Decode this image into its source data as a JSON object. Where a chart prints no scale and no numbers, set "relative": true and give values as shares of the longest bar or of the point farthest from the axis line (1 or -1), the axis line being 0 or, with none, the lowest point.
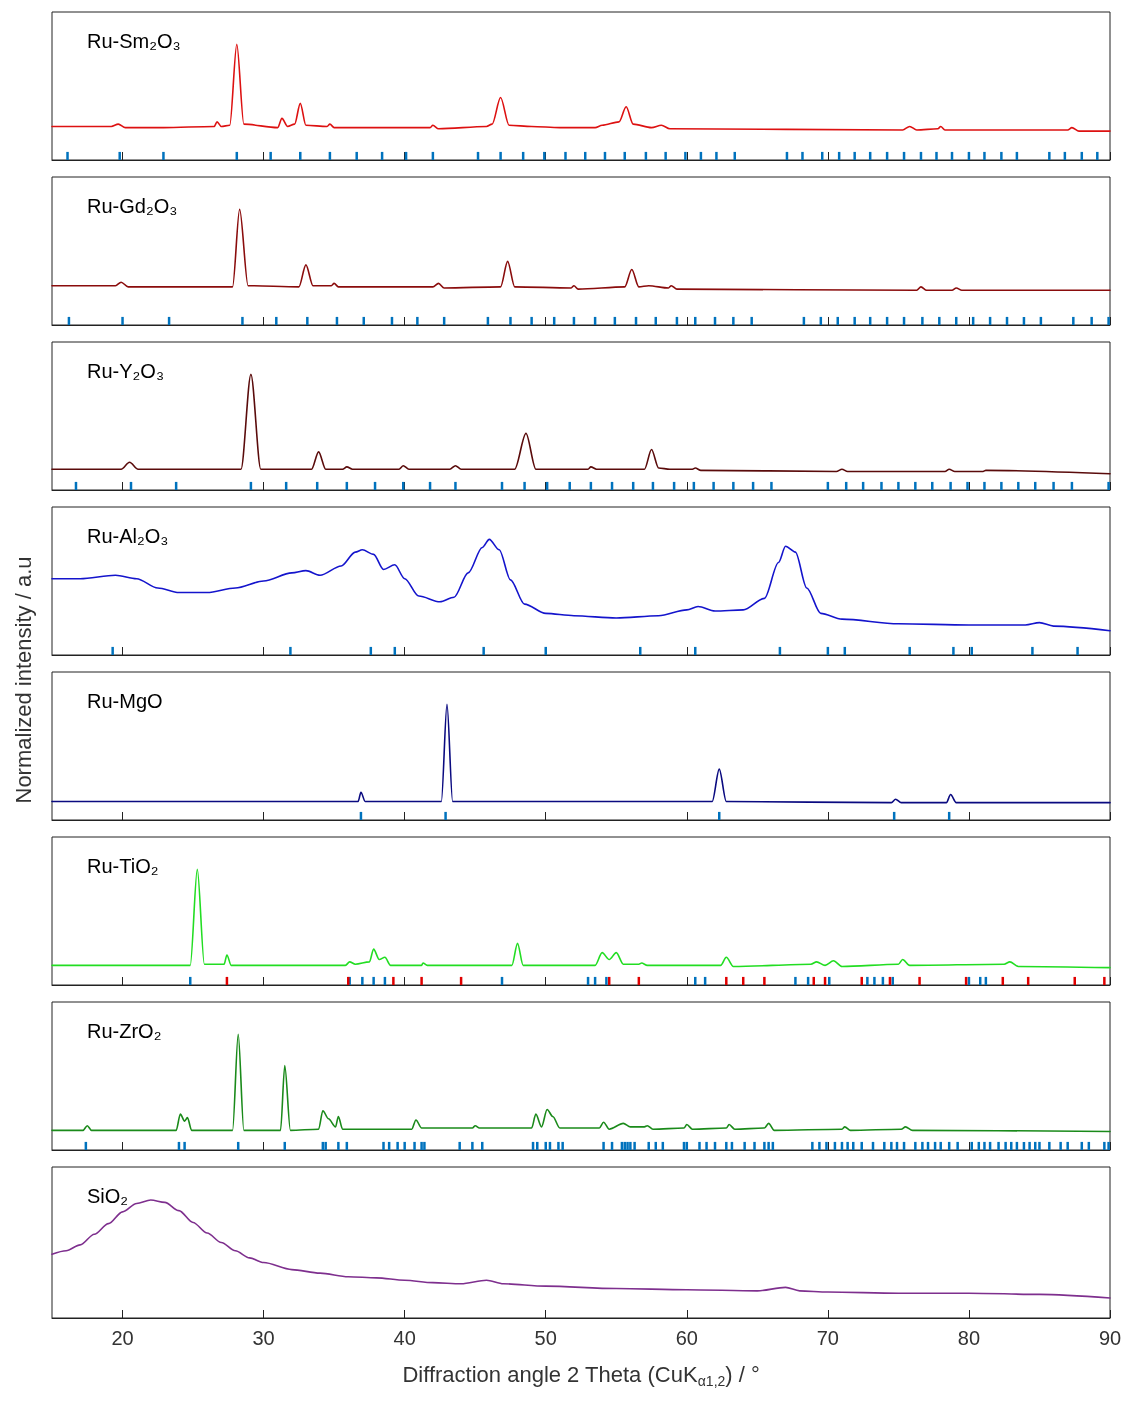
{
  "chart_data": [
    {
      "type": "line",
      "title": "Ru-Sm₂O₃",
      "relative": true,
      "xlim": [
        15,
        90
      ],
      "xticks": [
        20,
        30,
        40,
        50,
        60,
        70,
        80,
        90
      ],
      "tick_labels": false,
      "series": [
        {
          "color": "#dd1111",
          "x": [
            15,
            19.2,
            19.7,
            20.2,
            22.9,
            26.5,
            26.7,
            27,
            27.6,
            28.1,
            28.6,
            31,
            31.3,
            31.7,
            32.2,
            32.6,
            33,
            34.5,
            34.7,
            35,
            38.3,
            41.8,
            42,
            42.4,
            45.8,
            46.2,
            46.8,
            47.4,
            49,
            51,
            53.5,
            54,
            55.2,
            55.7,
            56.2,
            57.5,
            58.2,
            58.8,
            75.3,
            75.8,
            76.3,
            77.8,
            78,
            78.3,
            87,
            87.3,
            87.8,
            90
          ],
          "values": [
            0.29,
            0.29,
            0.31,
            0.28,
            0.28,
            0.29,
            0.33,
            0.29,
            0.3,
            1,
            0.31,
            0.28,
            0.36,
            0.29,
            0.31,
            0.49,
            0.3,
            0.29,
            0.31,
            0.28,
            0.28,
            0.28,
            0.3,
            0.27,
            0.29,
            0.31,
            0.54,
            0.3,
            0.29,
            0.28,
            0.28,
            0.3,
            0.33,
            0.46,
            0.31,
            0.28,
            0.3,
            0.27,
            0.26,
            0.29,
            0.26,
            0.27,
            0.29,
            0.26,
            0.26,
            0.28,
            0.25,
            0.25
          ]
        },
        {
          "type": "bar",
          "color": "#0072bd",
          "x": [
            16.1,
            19.8,
            22.9,
            28.1,
            30.5,
            32.6,
            34.7,
            36.6,
            38.4,
            40.1,
            42.0,
            45.2,
            46.8,
            48.4,
            49.9,
            51.4,
            52.8,
            54.2,
            55.6,
            57.1,
            58.5,
            59.9,
            61.0,
            62.1,
            63.4,
            67.1,
            68.2,
            69.6,
            70.8,
            71.9,
            73.0,
            74.2,
            75.4,
            76.6,
            77.7,
            78.8,
            80.0,
            81.1,
            82.3,
            83.4,
            85.7,
            86.8,
            88.0,
            89.1
          ],
          "values": [
            0.07,
            0.07,
            0.07,
            0.07,
            0.07,
            0.07,
            0.07,
            0.07,
            0.07,
            0.07,
            0.07,
            0.07,
            0.07,
            0.07,
            0.07,
            0.07,
            0.07,
            0.07,
            0.07,
            0.07,
            0.07,
            0.07,
            0.07,
            0.07,
            0.07,
            0.07,
            0.07,
            0.07,
            0.07,
            0.07,
            0.07,
            0.07,
            0.07,
            0.07,
            0.07,
            0.07,
            0.07,
            0.07,
            0.07,
            0.07,
            0.07,
            0.07,
            0.07,
            0.07
          ]
        }
      ]
    },
    {
      "type": "line",
      "title": "Ru-Gd₂O₃",
      "relative": true,
      "xlim": [
        15,
        90
      ],
      "xticks": [
        20,
        30,
        40,
        50,
        60,
        70,
        80,
        90
      ],
      "tick_labels": false,
      "series": [
        {
          "color": "#8a0c0c",
          "x": [
            15,
            19.5,
            19.9,
            20.4,
            27.8,
            28.3,
            28.9,
            32.5,
            33,
            33.5,
            34.8,
            35,
            35.3,
            42,
            42.4,
            42.8,
            46.8,
            47.3,
            47.8,
            51.8,
            52,
            52.3,
            55.6,
            56.1,
            56.6,
            57.3,
            58.7,
            58.9,
            59.3,
            76.3,
            76.6,
            77,
            78.8,
            79.1,
            79.5,
            90
          ],
          "values": [
            0.34,
            0.34,
            0.37,
            0.33,
            0.33,
            1,
            0.34,
            0.33,
            0.52,
            0.34,
            0.34,
            0.36,
            0.33,
            0.33,
            0.36,
            0.32,
            0.33,
            0.55,
            0.33,
            0.32,
            0.34,
            0.31,
            0.33,
            0.48,
            0.33,
            0.34,
            0.32,
            0.34,
            0.31,
            0.3,
            0.33,
            0.3,
            0.3,
            0.32,
            0.3,
            0.3
          ]
        },
        {
          "type": "bar",
          "color": "#0072bd",
          "x": [
            16.2,
            20.0,
            23.3,
            28.5,
            30.9,
            33.1,
            35.2,
            37.1,
            39.1,
            40.9,
            42.8,
            45.9,
            47.5,
            49.0,
            50.6,
            52.0,
            53.5,
            54.9,
            56.4,
            57.8,
            59.3,
            60.6,
            62.0,
            63.3,
            64.6,
            68.3,
            69.5,
            70.7,
            71.9,
            73.0,
            74.2,
            75.4,
            76.7,
            77.9,
            79.1,
            80.3,
            81.5,
            82.7,
            83.9,
            85.1,
            87.4,
            88.7,
            89.9
          ],
          "values": [
            0.07,
            0.07,
            0.07,
            0.07,
            0.07,
            0.07,
            0.07,
            0.07,
            0.07,
            0.07,
            0.07,
            0.07,
            0.07,
            0.07,
            0.07,
            0.07,
            0.07,
            0.07,
            0.07,
            0.07,
            0.07,
            0.07,
            0.07,
            0.07,
            0.07,
            0.07,
            0.07,
            0.07,
            0.07,
            0.07,
            0.07,
            0.07,
            0.07,
            0.07,
            0.07,
            0.07,
            0.07,
            0.07,
            0.07,
            0.07,
            0.07,
            0.07,
            0.07
          ]
        }
      ]
    },
    {
      "type": "line",
      "title": "Ru-Y₂O₃",
      "relative": true,
      "xlim": [
        15,
        90
      ],
      "xticks": [
        20,
        30,
        40,
        50,
        60,
        70,
        80,
        90
      ],
      "tick_labels": false,
      "series": [
        {
          "color": "#5a0b0b",
          "x": [
            15,
            19.9,
            20.5,
            21.1,
            28.4,
            29.1,
            29.8,
            33.4,
            33.9,
            34.4,
            35.6,
            35.9,
            36.3,
            39.6,
            39.9,
            40.3,
            43.2,
            43.6,
            44,
            47.8,
            48.6,
            49.3,
            53,
            53.2,
            53.6,
            57,
            57.5,
            58,
            58.8,
            60.4,
            60.6,
            61,
            70.6,
            71,
            71.4,
            78.3,
            78.6,
            79,
            81,
            81.2,
            90
          ],
          "values": [
            0.18,
            0.18,
            0.24,
            0.18,
            0.18,
            1,
            0.18,
            0.18,
            0.33,
            0.18,
            0.18,
            0.2,
            0.18,
            0.18,
            0.21,
            0.18,
            0.18,
            0.21,
            0.18,
            0.18,
            0.49,
            0.18,
            0.18,
            0.2,
            0.18,
            0.18,
            0.35,
            0.19,
            0.18,
            0.18,
            0.19,
            0.17,
            0.16,
            0.18,
            0.16,
            0.16,
            0.18,
            0.16,
            0.16,
            0.17,
            0.14
          ]
        },
        {
          "type": "bar",
          "color": "#0072bd",
          "x": [
            16.7,
            20.6,
            23.8,
            29.1,
            31.6,
            33.8,
            35.9,
            37.9,
            39.9,
            41.8,
            43.6,
            46.9,
            48.5,
            50.1,
            51.7,
            53.2,
            54.7,
            56.2,
            57.6,
            59.1,
            60.5,
            61.9,
            63.3,
            64.7,
            66.0,
            70.0,
            71.3,
            72.5,
            73.8,
            75.0,
            76.2,
            77.4,
            78.7,
            79.9,
            81.1,
            82.3,
            83.5,
            84.7,
            86.0,
            87.3,
            89.9
          ],
          "values": [
            0.07,
            0.07,
            0.07,
            0.07,
            0.07,
            0.07,
            0.07,
            0.07,
            0.07,
            0.07,
            0.07,
            0.07,
            0.07,
            0.07,
            0.07,
            0.07,
            0.07,
            0.07,
            0.07,
            0.07,
            0.07,
            0.07,
            0.07,
            0.07,
            0.07,
            0.07,
            0.07,
            0.07,
            0.07,
            0.07,
            0.07,
            0.07,
            0.07,
            0.07,
            0.07,
            0.07,
            0.07,
            0.07,
            0.07,
            0.07,
            0.07
          ]
        }
      ]
    },
    {
      "type": "line",
      "title": "Ru-Al₂O₃",
      "relative": true,
      "xlim": [
        15,
        90
      ],
      "xticks": [
        20,
        30,
        40,
        50,
        60,
        70,
        80,
        90
      ],
      "tick_labels": false,
      "series": [
        {
          "color": "#1414cc",
          "x": [
            15,
            17,
            19.5,
            21,
            22.5,
            24,
            26,
            28,
            30,
            32,
            33,
            34,
            35.5,
            36.5,
            37,
            37.8,
            38.5,
            39.3,
            40,
            41,
            42.5,
            43.5,
            44.5,
            45.5,
            46,
            46.7,
            47.5,
            48.5,
            50,
            52,
            55,
            58,
            60,
            60.8,
            62,
            64,
            65.5,
            66.5,
            67,
            67.7,
            68.5,
            69.5,
            71,
            75,
            80,
            84,
            85,
            86,
            90
          ],
          "values": [
            0.66,
            0.66,
            0.69,
            0.66,
            0.58,
            0.54,
            0.54,
            0.58,
            0.64,
            0.71,
            0.73,
            0.69,
            0.77,
            0.89,
            0.91,
            0.87,
            0.74,
            0.78,
            0.66,
            0.51,
            0.46,
            0.5,
            0.71,
            0.93,
            1,
            0.91,
            0.65,
            0.44,
            0.36,
            0.34,
            0.32,
            0.34,
            0.39,
            0.42,
            0.38,
            0.39,
            0.49,
            0.8,
            0.94,
            0.89,
            0.58,
            0.36,
            0.31,
            0.27,
            0.26,
            0.26,
            0.28,
            0.25,
            0.21
          ]
        },
        {
          "type": "bar",
          "color": "#0072bd",
          "x": [
            19.3,
            31.9,
            37.6,
            39.3,
            45.6,
            50.0,
            56.7,
            60.6,
            66.6,
            70.0,
            71.2,
            75.8,
            78.9,
            80.2,
            84.5,
            87.7
          ],
          "values": [
            0.07,
            0.07,
            0.07,
            0.07,
            0.07,
            0.07,
            0.07,
            0.07,
            0.07,
            0.07,
            0.07,
            0.07,
            0.07,
            0.07,
            0.07,
            0.07
          ]
        }
      ]
    },
    {
      "type": "line",
      "title": "Ru-MgO",
      "ylabel": "Normalized intensity / a.u",
      "relative": true,
      "xlim": [
        15,
        90
      ],
      "xticks": [
        20,
        30,
        40,
        50,
        60,
        70,
        80,
        90
      ],
      "tick_labels": false,
      "series": [
        {
          "color": "#0a0a80",
          "x": [
            15,
            36.7,
            36.9,
            37.2,
            42.6,
            43,
            43.4,
            61.8,
            62.3,
            62.8,
            74.5,
            74.8,
            75.2,
            78.4,
            78.7,
            79.1,
            90
          ],
          "values": [
            0.16,
            0.16,
            0.24,
            0.16,
            0.16,
            1,
            0.16,
            0.16,
            0.44,
            0.16,
            0.15,
            0.18,
            0.15,
            0.15,
            0.22,
            0.15,
            0.15
          ]
        },
        {
          "type": "bar",
          "color": "#0072bd",
          "x": [
            36.9,
            42.9,
            62.3,
            74.7,
            78.6
          ],
          "values": [
            0.07,
            0.07,
            0.07,
            0.07,
            0.07
          ]
        }
      ]
    },
    {
      "type": "line",
      "title": "Ru-TiO₂",
      "relative": true,
      "xlim": [
        15,
        90
      ],
      "xticks": [
        20,
        30,
        40,
        50,
        60,
        70,
        80,
        90
      ],
      "tick_labels": false,
      "series": [
        {
          "color": "#22dd22",
          "x": [
            15,
            24.8,
            25.3,
            25.8,
            27.2,
            27.4,
            27.7,
            35.8,
            36.1,
            36.5,
            37.5,
            37.8,
            38.2,
            38.6,
            39,
            41.2,
            41.3,
            41.6,
            47.6,
            48,
            48.4,
            53.5,
            54,
            54.5,
            55,
            55.5,
            56.6,
            56.8,
            57.2,
            62.4,
            62.8,
            63.3,
            68.8,
            69.2,
            69.8,
            70.4,
            71,
            75,
            75.3,
            75.8,
            82.5,
            82.9,
            83.5,
            90
          ],
          "values": [
            0.17,
            0.17,
            1,
            0.18,
            0.18,
            0.26,
            0.17,
            0.17,
            0.2,
            0.18,
            0.2,
            0.31,
            0.22,
            0.24,
            0.17,
            0.17,
            0.19,
            0.17,
            0.17,
            0.36,
            0.17,
            0.17,
            0.28,
            0.22,
            0.28,
            0.18,
            0.18,
            0.19,
            0.17,
            0.17,
            0.24,
            0.16,
            0.18,
            0.2,
            0.17,
            0.21,
            0.16,
            0.18,
            0.22,
            0.17,
            0.18,
            0.2,
            0.16,
            0.15
          ]
        },
        {
          "type": "bar",
          "color": "#0072bd",
          "x": [
            24.8,
            36.1,
            37.0,
            37.8,
            38.6,
            46.9,
            53.0,
            53.5,
            54.3,
            60.6,
            61.3,
            67.7,
            68.6,
            70.1,
            72.8,
            73.3,
            73.9,
            74.6,
            80.0,
            80.8,
            81.2
          ],
          "values": [
            0.07,
            0.07,
            0.07,
            0.07,
            0.07,
            0.07,
            0.07,
            0.07,
            0.07,
            0.07,
            0.07,
            0.07,
            0.07,
            0.07,
            0.07,
            0.07,
            0.07,
            0.07,
            0.07,
            0.07,
            0.07
          ]
        },
        {
          "type": "bar",
          "color": "#e00000",
          "x": [
            27.4,
            36.0,
            39.2,
            41.2,
            44.0,
            54.5,
            56.6,
            62.8,
            64.0,
            65.5,
            69.0,
            69.8,
            72.4,
            74.4,
            76.5,
            79.8,
            82.4,
            84.2,
            87.5,
            89.6
          ],
          "values": [
            0.07,
            0.07,
            0.07,
            0.07,
            0.07,
            0.07,
            0.07,
            0.07,
            0.07,
            0.07,
            0.07,
            0.07,
            0.07,
            0.07,
            0.07,
            0.07,
            0.07,
            0.07,
            0.07,
            0.07
          ]
        }
      ]
    },
    {
      "type": "line",
      "title": "Ru-ZrO₂",
      "relative": true,
      "xlim": [
        15,
        90
      ],
      "xticks": [
        20,
        30,
        40,
        50,
        60,
        70,
        80,
        90
      ],
      "tick_labels": false,
      "series": [
        {
          "color": "#1a8a1a",
          "x": [
            15,
            17.2,
            17.5,
            17.8,
            23.8,
            24.1,
            24.4,
            24.6,
            24.9,
            27.8,
            28.2,
            28.6,
            31.2,
            31.5,
            31.9,
            33.9,
            34.2,
            34.6,
            35.1,
            35.3,
            35.6,
            40.5,
            40.8,
            41.2,
            44.8,
            45,
            45.3,
            49,
            49.3,
            49.7,
            50.1,
            50.5,
            51,
            53.8,
            54.1,
            54.5,
            55.5,
            56,
            57,
            57.2,
            57.6,
            59.8,
            60,
            60.4,
            62.8,
            63,
            63.4,
            65.5,
            65.8,
            66.2,
            71,
            71.2,
            71.6,
            75.2,
            75.5,
            76,
            90
          ],
          "values": [
            0.17,
            0.17,
            0.21,
            0.17,
            0.17,
            0.31,
            0.25,
            0.28,
            0.17,
            0.17,
            1,
            0.17,
            0.17,
            0.73,
            0.17,
            0.18,
            0.34,
            0.27,
            0.2,
            0.29,
            0.18,
            0.18,
            0.26,
            0.19,
            0.19,
            0.21,
            0.19,
            0.19,
            0.31,
            0.2,
            0.35,
            0.29,
            0.19,
            0.19,
            0.24,
            0.18,
            0.23,
            0.2,
            0.2,
            0.21,
            0.18,
            0.19,
            0.22,
            0.18,
            0.19,
            0.22,
            0.18,
            0.19,
            0.23,
            0.17,
            0.18,
            0.2,
            0.17,
            0.18,
            0.2,
            0.17,
            0.16
          ]
        },
        {
          "type": "bar",
          "color": "#0072bd",
          "x": [
            17.4,
            24.0,
            24.4,
            28.2,
            31.5,
            34.2,
            34.4,
            35.3,
            35.9,
            38.5,
            38.9,
            39.5,
            40.0,
            40.7,
            41.2,
            41.4,
            43.9,
            44.8,
            45.5,
            49.1,
            49.4,
            50.0,
            50.3,
            50.9,
            51.2,
            54.1,
            54.7,
            55.4,
            55.6,
            55.8,
            56.0,
            56.3,
            57.3,
            57.8,
            58.3,
            59.8,
            60.0,
            60.9,
            61.4,
            62.0,
            62.8,
            63.2,
            64.1,
            64.8,
            65.5,
            65.8,
            66.1,
            68.9,
            69.4,
            69.9,
            70.5,
            71.0,
            71.4,
            71.8,
            72.4,
            73.2,
            74.0,
            74.5,
            74.9,
            75.4,
            76.2,
            76.7,
            77.1,
            77.6,
            78.0,
            78.6,
            79.2,
            80.2,
            80.7,
            81.1,
            81.5,
            82.1,
            82.6,
            83.0,
            83.4,
            83.9,
            84.3,
            84.7,
            85.0,
            85.7,
            86.5,
            87.0,
            88.0,
            88.5,
            89.6,
            89.9
          ],
          "values": [
            0.07,
            0.07,
            0.07,
            0.07,
            0.07,
            0.07,
            0.07,
            0.07,
            0.07,
            0.07,
            0.07,
            0.07,
            0.07,
            0.07,
            0.07,
            0.07,
            0.07,
            0.07,
            0.07,
            0.07,
            0.07,
            0.07,
            0.07,
            0.07,
            0.07,
            0.07,
            0.07,
            0.07,
            0.07,
            0.07,
            0.07,
            0.07,
            0.07,
            0.07,
            0.07,
            0.07,
            0.07,
            0.07,
            0.07,
            0.07,
            0.07,
            0.07,
            0.07,
            0.07,
            0.07,
            0.07,
            0.07,
            0.07,
            0.07,
            0.07,
            0.07,
            0.07,
            0.07,
            0.07,
            0.07,
            0.07,
            0.07,
            0.07,
            0.07,
            0.07,
            0.07,
            0.07,
            0.07,
            0.07,
            0.07,
            0.07,
            0.07,
            0.07,
            0.07,
            0.07,
            0.07,
            0.07,
            0.07,
            0.07,
            0.07,
            0.07,
            0.07,
            0.07,
            0.07,
            0.07,
            0.07,
            0.07,
            0.07,
            0.07,
            0.07,
            0.07
          ]
        }
      ]
    },
    {
      "type": "line",
      "title": "SiO₂",
      "xlabel": "Diffraction angle 2 Theta (CuK$_{α1,2}$) / °",
      "relative": true,
      "xlim": [
        15,
        90
      ],
      "xticks": [
        20,
        30,
        40,
        50,
        60,
        70,
        80,
        90
      ],
      "tick_labels": "x",
      "series": [
        {
          "color": "#7e2f8e",
          "x": [
            15,
            16,
            17,
            18,
            19,
            20,
            21,
            22,
            23,
            24,
            25,
            26,
            27,
            28,
            29,
            30,
            32,
            34,
            36,
            38,
            40,
            42,
            44,
            45.8,
            47,
            50,
            55,
            60,
            65,
            67,
            68,
            70,
            75,
            80,
            85,
            90
          ],
          "values": [
            0.54,
            0.57,
            0.62,
            0.71,
            0.8,
            0.9,
            0.97,
            1,
            0.98,
            0.91,
            0.81,
            0.72,
            0.64,
            0.57,
            0.51,
            0.47,
            0.41,
            0.38,
            0.35,
            0.34,
            0.32,
            0.3,
            0.29,
            0.32,
            0.29,
            0.27,
            0.25,
            0.24,
            0.23,
            0.26,
            0.23,
            0.22,
            0.21,
            0.21,
            0.2,
            0.17
          ]
        }
      ]
    }
  ]
}
